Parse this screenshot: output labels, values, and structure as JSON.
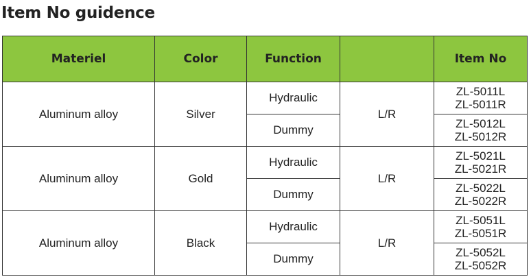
{
  "title": "Item No guidence",
  "header_color": "#8dc63f",
  "columns": [
    "Materiel",
    "Color",
    "Function",
    "",
    "Item No"
  ],
  "groups": [
    {
      "materiel": "Aluminum alloy",
      "color": "Silver",
      "side": "L/R",
      "rows": [
        {
          "function": "Hydraulic",
          "items": [
            "ZL-5011L",
            "ZL-5011R"
          ]
        },
        {
          "function": "Dummy",
          "items": [
            "ZL-5012L",
            "ZL-5012R"
          ]
        }
      ]
    },
    {
      "materiel": "Aluminum alloy",
      "color": "Gold",
      "side": "L/R",
      "rows": [
        {
          "function": "Hydraulic",
          "items": [
            "ZL-5021L",
            "ZL-5021R"
          ]
        },
        {
          "function": "Dummy",
          "items": [
            "ZL-5022L",
            "ZL-5022R"
          ]
        }
      ]
    },
    {
      "materiel": "Aluminum alloy",
      "color": "Black",
      "side": "L/R",
      "rows": [
        {
          "function": "Hydraulic",
          "items": [
            "ZL-5051L",
            "ZL-5051R"
          ]
        },
        {
          "function": "Dummy",
          "items": [
            "ZL-5052L",
            "ZL-5052R"
          ]
        }
      ]
    }
  ]
}
